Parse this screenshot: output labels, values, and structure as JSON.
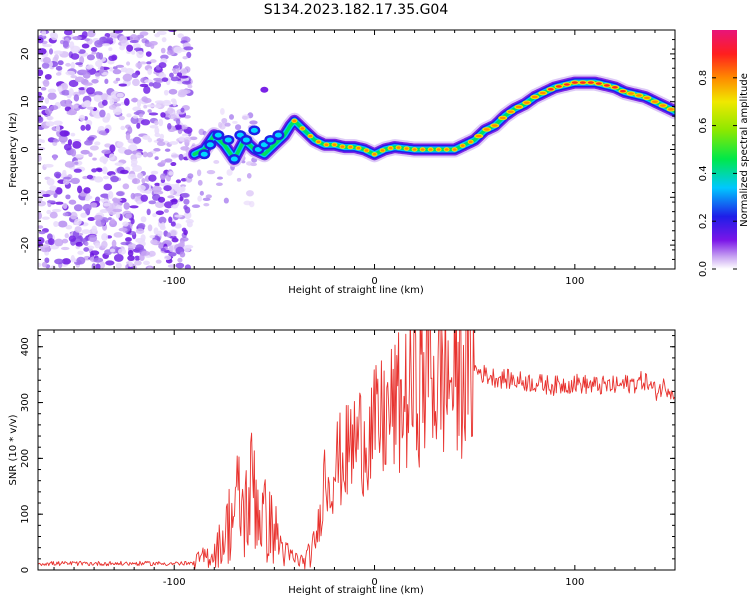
{
  "figure": {
    "title": "S134.2023.182.17.35.G04"
  },
  "chart_data": [
    {
      "type": "heatmap",
      "xlabel": "Height of straight line (km)",
      "ylabel": "Frequency (Hz)",
      "xlim": [
        -168,
        150
      ],
      "ylim": [
        -25,
        25
      ],
      "xticks": [
        -100,
        0,
        100
      ],
      "yticks": [
        -20,
        -10,
        0,
        10,
        20
      ],
      "colorbar": {
        "label": "Normalized spectral amplitude",
        "ticks": [
          0.0,
          0.2,
          0.4,
          0.6,
          0.8
        ],
        "range": [
          0,
          1
        ],
        "colormap": "rainbow (white-violet-blue-cyan-green-yellow-orange-red-magenta)"
      },
      "grid": false,
      "ridge": {
        "name": "frequency trace",
        "x": [
          -90,
          -85,
          -80,
          -75,
          -70,
          -65,
          -60,
          -55,
          -50,
          -45,
          -42,
          -40,
          -35,
          -30,
          -25,
          -20,
          -15,
          -10,
          -5,
          0,
          5,
          10,
          20,
          30,
          40,
          45,
          50,
          55,
          60,
          65,
          70,
          75,
          80,
          85,
          90,
          95,
          100,
          105,
          110,
          115,
          120,
          125,
          130,
          135,
          140,
          145,
          150
        ],
        "y": [
          -1,
          0,
          3,
          1,
          -2,
          2,
          0,
          -1,
          1,
          3,
          5,
          6,
          4,
          2,
          1,
          1,
          0.5,
          0.5,
          0,
          -1,
          0,
          0.5,
          0,
          0,
          0,
          1,
          2,
          4,
          5,
          7,
          8.5,
          9.5,
          11,
          12,
          13,
          13.5,
          14,
          14,
          14,
          13.5,
          13,
          12,
          11.5,
          11,
          10,
          9,
          8
        ]
      },
      "noise_region": {
        "x": [
          -168,
          -92
        ],
        "note": "scattered low-amplitude noise"
      }
    },
    {
      "type": "line",
      "xlabel": "Height of straight line (km)",
      "ylabel": "SNR (10 * v/v)",
      "xlim": [
        -168,
        150
      ],
      "ylim": [
        0,
        430
      ],
      "xticks": [
        -100,
        0,
        100
      ],
      "yticks": [
        0,
        100,
        200,
        300,
        400
      ],
      "grid": false,
      "color": "#e8322e",
      "envelope": {
        "x": [
          -168,
          -140,
          -110,
          -90,
          -80,
          -75,
          -72,
          -68,
          -65,
          -62,
          -60,
          -58,
          -55,
          -50,
          -45,
          -40,
          -35,
          -30,
          -27,
          -25,
          -22,
          -20,
          -15,
          -10,
          -5,
          0,
          5,
          10,
          15,
          20,
          25,
          28,
          30,
          35,
          40,
          45,
          50,
          55,
          60,
          70,
          80,
          90,
          100,
          110,
          120,
          130,
          135,
          140,
          145,
          150
        ],
        "y": [
          10,
          10,
          10,
          15,
          30,
          60,
          90,
          120,
          100,
          130,
          170,
          110,
          90,
          70,
          30,
          20,
          15,
          40,
          100,
          170,
          160,
          190,
          200,
          230,
          240,
          250,
          270,
          290,
          300,
          330,
          340,
          400,
          330,
          350,
          340,
          370,
          360,
          350,
          345,
          340,
          335,
          330,
          335,
          330,
          330,
          335,
          340,
          320,
          330,
          320
        ]
      }
    }
  ]
}
